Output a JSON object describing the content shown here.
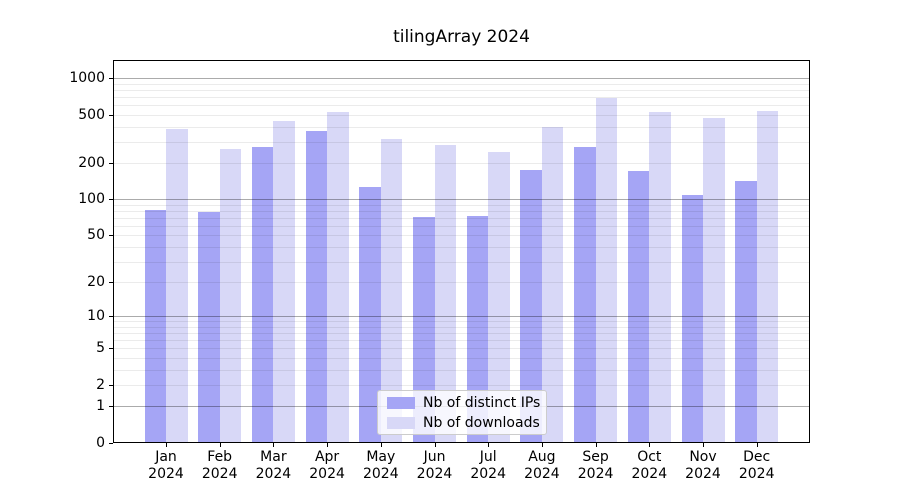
{
  "chart_data": {
    "type": "bar",
    "title": "tilingArray 2024",
    "x": {
      "months": [
        "Jan",
        "Feb",
        "Mar",
        "Apr",
        "May",
        "Jun",
        "Jul",
        "Aug",
        "Sep",
        "Oct",
        "Nov",
        "Dec"
      ],
      "year": "2024"
    },
    "series": [
      {
        "name": "Nb of distinct IPs",
        "color": "#a5a5f5",
        "values": [
          82,
          78,
          270,
          366,
          126,
          71,
          72,
          174,
          270,
          172,
          108,
          141
        ]
      },
      {
        "name": "Nb of downloads",
        "color": "#d8d8f7",
        "values": [
          385,
          263,
          443,
          522,
          315,
          284,
          248,
          398,
          692,
          530,
          466,
          536
        ]
      }
    ],
    "y_axis": {
      "scale": "log1p",
      "ticks": [
        0,
        1,
        2,
        5,
        10,
        20,
        50,
        100,
        200,
        500,
        1000
      ],
      "major_gridlines": [
        1,
        10,
        100,
        1000
      ],
      "ylim": [
        0,
        1410
      ],
      "grid": true
    },
    "legend": {
      "position": "bottom-center",
      "entries": [
        "Nb of distinct IPs",
        "Nb of downloads"
      ]
    }
  }
}
